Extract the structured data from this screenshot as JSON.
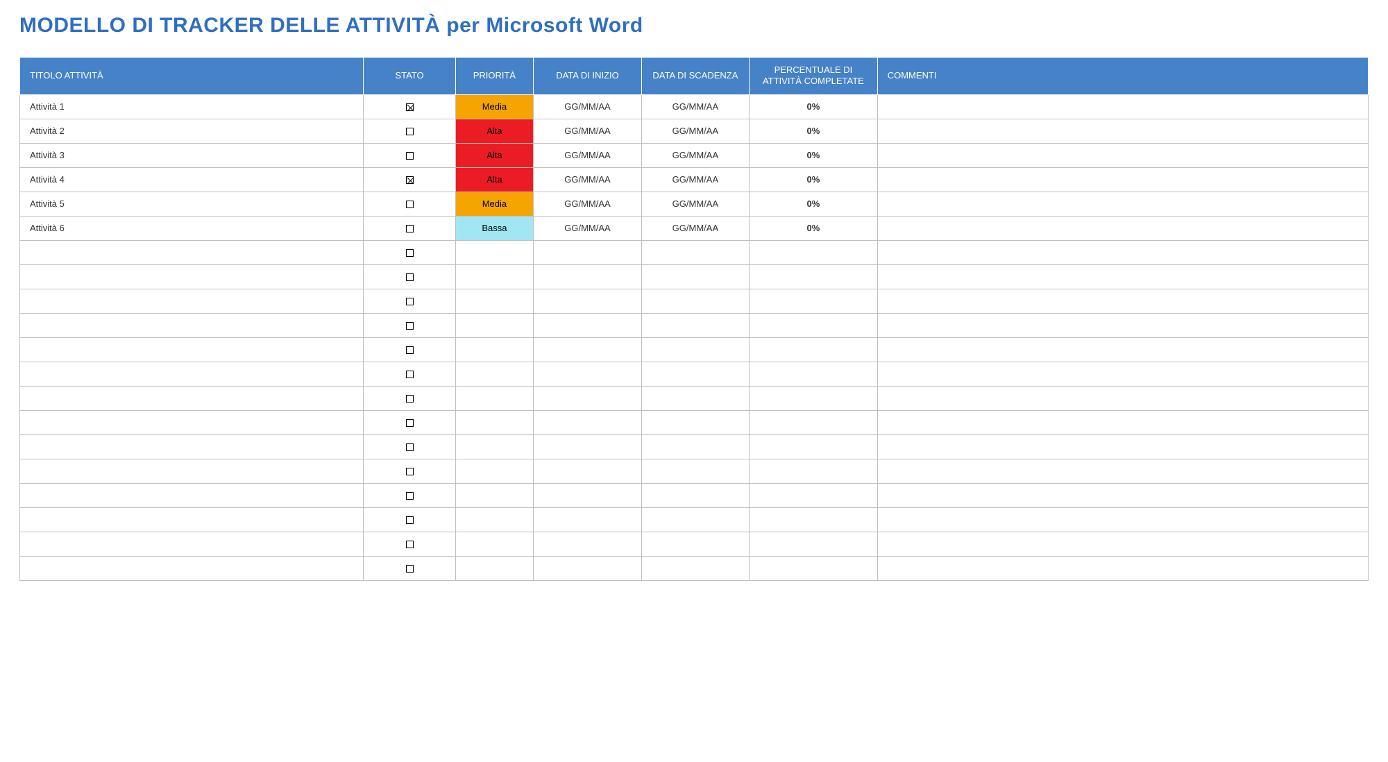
{
  "title": {
    "text": "MODELLO DI TRACKER DELLE ATTIVITÀ per Microsoft Word",
    "color": "#2f6fc1"
  },
  "table": {
    "header_bg": "#4682c8",
    "header_fg": "#ffffff",
    "border_color": "#bfbfbf",
    "row_bg": "#ffffff",
    "columns": [
      {
        "key": "title",
        "label": "TITOLO ATTIVITÀ",
        "width": "25.5%",
        "align": "left"
      },
      {
        "key": "status",
        "label": "STATO",
        "width": "6.8%",
        "align": "center"
      },
      {
        "key": "priority",
        "label": "PRIORITÀ",
        "width": "5.8%",
        "align": "center"
      },
      {
        "key": "start",
        "label": "DATA DI INIZIO",
        "width": "8%",
        "align": "center"
      },
      {
        "key": "due",
        "label": "DATA DI SCADENZA",
        "width": "8%",
        "align": "center"
      },
      {
        "key": "pct",
        "label": "PERCENTUALE DI ATTIVITÀ COMPLETATE",
        "width": "9.5%",
        "align": "center"
      },
      {
        "key": "comment",
        "label": "COMMENTI",
        "width": "36.4%",
        "align": "left"
      }
    ],
    "priority_colors": {
      "Alta": {
        "bg": "#ec1c24",
        "fg": "#000000"
      },
      "Media": {
        "bg": "#f6a500",
        "fg": "#000000"
      },
      "Bassa": {
        "bg": "#a0e7f3",
        "fg": "#000000"
      }
    },
    "rows": [
      {
        "title": "Attività 1",
        "status": true,
        "priority": "Media",
        "start": "GG/MM/AA",
        "due": "GG/MM/AA",
        "pct": "0%",
        "comment": ""
      },
      {
        "title": "Attività 2",
        "status": false,
        "priority": "Alta",
        "start": "GG/MM/AA",
        "due": "GG/MM/AA",
        "pct": "0%",
        "comment": ""
      },
      {
        "title": "Attività 3",
        "status": false,
        "priority": "Alta",
        "start": "GG/MM/AA",
        "due": "GG/MM/AA",
        "pct": "0%",
        "comment": ""
      },
      {
        "title": "Attività 4",
        "status": true,
        "priority": "Alta",
        "start": "GG/MM/AA",
        "due": "GG/MM/AA",
        "pct": "0%",
        "comment": ""
      },
      {
        "title": "Attività 5",
        "status": false,
        "priority": "Media",
        "start": "GG/MM/AA",
        "due": "GG/MM/AA",
        "pct": "0%",
        "comment": ""
      },
      {
        "title": "Attività 6",
        "status": false,
        "priority": "Bassa",
        "start": "GG/MM/AA",
        "due": "GG/MM/AA",
        "pct": "0%",
        "comment": ""
      },
      {
        "title": "",
        "status": false,
        "priority": "",
        "start": "",
        "due": "",
        "pct": "",
        "comment": ""
      },
      {
        "title": "",
        "status": false,
        "priority": "",
        "start": "",
        "due": "",
        "pct": "",
        "comment": ""
      },
      {
        "title": "",
        "status": false,
        "priority": "",
        "start": "",
        "due": "",
        "pct": "",
        "comment": ""
      },
      {
        "title": "",
        "status": false,
        "priority": "",
        "start": "",
        "due": "",
        "pct": "",
        "comment": ""
      },
      {
        "title": "",
        "status": false,
        "priority": "",
        "start": "",
        "due": "",
        "pct": "",
        "comment": ""
      },
      {
        "title": "",
        "status": false,
        "priority": "",
        "start": "",
        "due": "",
        "pct": "",
        "comment": ""
      },
      {
        "title": "",
        "status": false,
        "priority": "",
        "start": "",
        "due": "",
        "pct": "",
        "comment": ""
      },
      {
        "title": "",
        "status": false,
        "priority": "",
        "start": "",
        "due": "",
        "pct": "",
        "comment": ""
      },
      {
        "title": "",
        "status": false,
        "priority": "",
        "start": "",
        "due": "",
        "pct": "",
        "comment": ""
      },
      {
        "title": "",
        "status": false,
        "priority": "",
        "start": "",
        "due": "",
        "pct": "",
        "comment": ""
      },
      {
        "title": "",
        "status": false,
        "priority": "",
        "start": "",
        "due": "",
        "pct": "",
        "comment": ""
      },
      {
        "title": "",
        "status": false,
        "priority": "",
        "start": "",
        "due": "",
        "pct": "",
        "comment": ""
      },
      {
        "title": "",
        "status": false,
        "priority": "",
        "start": "",
        "due": "",
        "pct": "",
        "comment": ""
      },
      {
        "title": "",
        "status": false,
        "priority": "",
        "start": "",
        "due": "",
        "pct": "",
        "comment": ""
      }
    ]
  }
}
